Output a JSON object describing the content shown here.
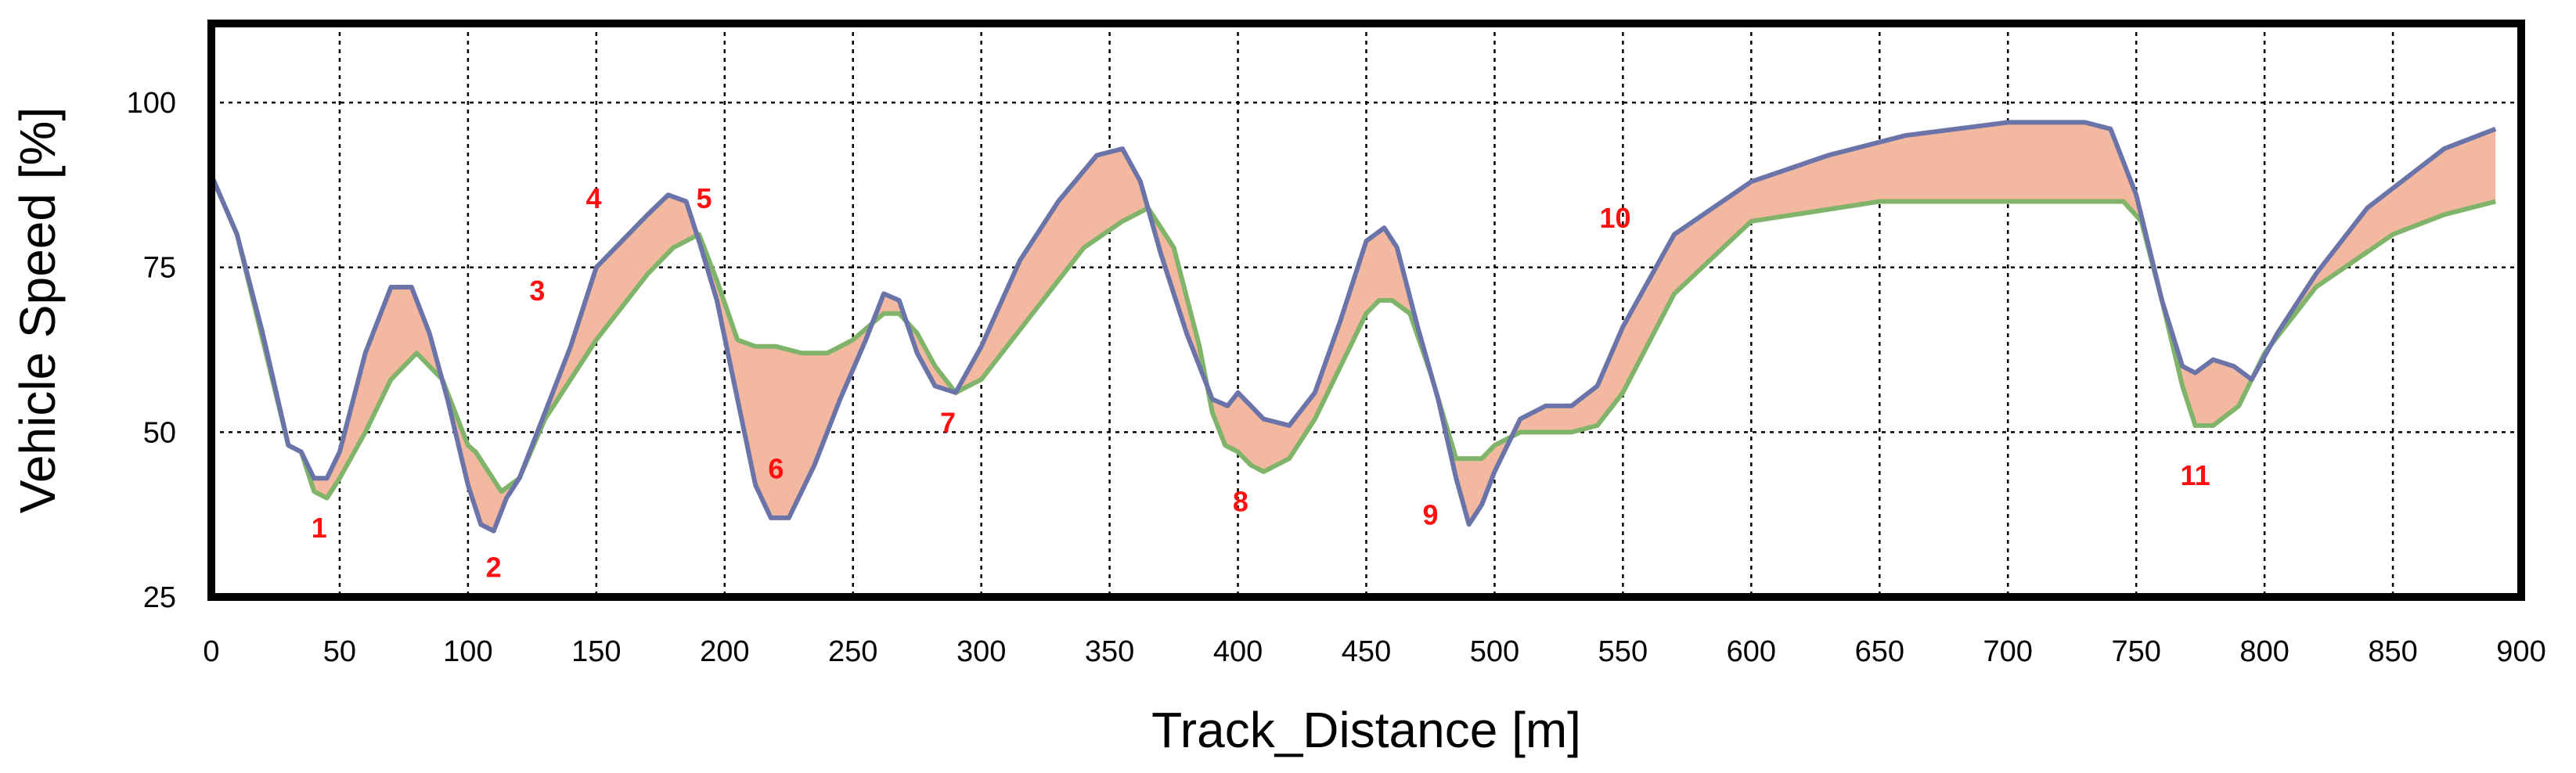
{
  "chart_data": {
    "type": "area",
    "title": "",
    "xlabel": "Track_Distance [m]",
    "ylabel": "Vehicle Speed  [%]",
    "xlim": [
      0,
      900
    ],
    "ylim": [
      25,
      112
    ],
    "xticks": [
      0,
      50,
      100,
      150,
      200,
      250,
      300,
      350,
      400,
      450,
      500,
      550,
      600,
      650,
      700,
      750,
      800,
      850,
      900
    ],
    "yticks": [
      25,
      50,
      75,
      100
    ],
    "grid": true,
    "legend": "none",
    "colors": {
      "upper_line": "#6a74a8",
      "lower_line": "#7fb46a",
      "band_fill": "#f2b8a0",
      "annotation": "#ff1010"
    },
    "series": [
      {
        "x": [
          0,
          10,
          20,
          30,
          35,
          40,
          45,
          50,
          60,
          70,
          78,
          85,
          92,
          100,
          105,
          110,
          115,
          120,
          130,
          140,
          150,
          160,
          170,
          178,
          185,
          190,
          197,
          205,
          212,
          218,
          225,
          235,
          245,
          255,
          262,
          268,
          275,
          282,
          290,
          300,
          315,
          330,
          345,
          355,
          362,
          370,
          380,
          390,
          396,
          400,
          410,
          420,
          430,
          440,
          450,
          457,
          462,
          470,
          478,
          485,
          490,
          495,
          500,
          510,
          520,
          530,
          540,
          550,
          570,
          600,
          630,
          660,
          700,
          730,
          740,
          750,
          760,
          768,
          773,
          780,
          788,
          795,
          805,
          820,
          840,
          870,
          890
        ],
        "values": [
          89,
          80,
          65,
          48,
          47,
          43,
          43,
          47,
          62,
          72,
          72,
          65,
          55,
          42,
          36,
          35,
          40,
          43,
          53,
          63,
          75,
          79,
          83,
          86,
          85,
          79,
          70,
          55,
          42,
          37,
          37,
          45,
          55,
          64,
          71,
          70,
          62,
          57,
          56,
          63,
          76,
          85,
          92,
          93,
          88,
          77,
          65,
          55,
          54,
          56,
          52,
          51,
          56,
          67,
          79,
          81,
          78,
          66,
          55,
          43,
          36,
          39,
          44,
          52,
          54,
          54,
          57,
          66,
          80,
          88,
          92,
          95,
          97,
          97,
          96,
          86,
          70,
          60,
          59,
          61,
          60,
          58,
          65,
          74,
          84,
          93,
          96
        ]
      },
      {
        "x": [
          0,
          10,
          20,
          30,
          35,
          40,
          45,
          50,
          60,
          70,
          80,
          90,
          100,
          103,
          108,
          113,
          120,
          130,
          150,
          170,
          180,
          190,
          197,
          205,
          212,
          220,
          230,
          240,
          250,
          262,
          268,
          275,
          282,
          290,
          300,
          320,
          340,
          355,
          365,
          375,
          385,
          390,
          395,
          400,
          405,
          410,
          420,
          430,
          440,
          450,
          455,
          460,
          467,
          475,
          485,
          495,
          500,
          510,
          520,
          530,
          540,
          550,
          570,
          600,
          650,
          700,
          730,
          745,
          752,
          760,
          768,
          773,
          780,
          790,
          800,
          820,
          850,
          870,
          890
        ],
        "values": [
          89,
          80,
          64,
          48,
          47,
          41,
          40,
          43,
          50,
          58,
          62,
          58,
          48,
          47,
          44,
          41,
          43,
          52,
          64,
          74,
          78,
          80,
          73,
          64,
          63,
          63,
          62,
          62,
          64,
          68,
          68,
          65,
          60,
          56,
          58,
          68,
          78,
          82,
          84,
          78,
          63,
          53,
          48,
          47,
          45,
          44,
          46,
          52,
          60,
          68,
          70,
          70,
          68,
          59,
          46,
          46,
          48,
          50,
          50,
          50,
          51,
          56,
          71,
          82,
          85,
          85,
          85,
          85,
          82,
          70,
          57,
          51,
          51,
          54,
          62,
          72,
          80,
          83,
          85
        ]
      }
    ],
    "annotations": [
      {
        "text": "1",
        "x": 42,
        "y": 34
      },
      {
        "text": "2",
        "x": 110,
        "y": 28
      },
      {
        "text": "3",
        "x": 127,
        "y": 70
      },
      {
        "text": "4",
        "x": 149,
        "y": 84
      },
      {
        "text": "5",
        "x": 192,
        "y": 84
      },
      {
        "text": "6",
        "x": 220,
        "y": 43
      },
      {
        "text": "7",
        "x": 287,
        "y": 50
      },
      {
        "text": "8",
        "x": 401,
        "y": 38
      },
      {
        "text": "9",
        "x": 475,
        "y": 36
      },
      {
        "text": "10",
        "x": 547,
        "y": 81
      },
      {
        "text": "11",
        "x": 773,
        "y": 42
      }
    ]
  }
}
